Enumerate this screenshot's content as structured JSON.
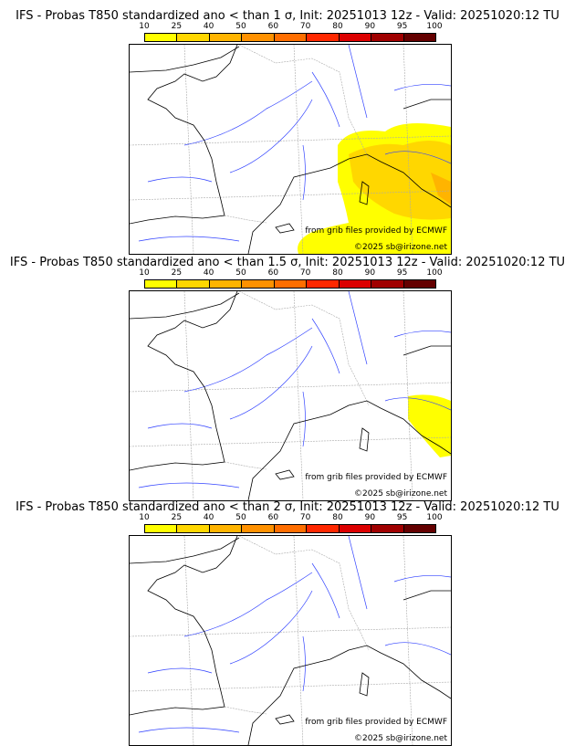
{
  "colorbar": {
    "ticks": [
      "10",
      "25",
      "40",
      "50",
      "60",
      "70",
      "80",
      "90",
      "95",
      "100"
    ],
    "colors": [
      "#ffff00",
      "#ffd700",
      "#ffb400",
      "#ff9100",
      "#ff6e00",
      "#ff2800",
      "#dc0000",
      "#a00000",
      "#640000"
    ]
  },
  "panels": [
    {
      "title": "IFS - Probas T850  standardized ano < than 1 σ, Init: 20251013 12z - Valid: 20251020:12 TU",
      "source": "from grib files provided by ECMWF",
      "copyright": "©2025 sb@irizone.net",
      "level": "high"
    },
    {
      "title": "IFS - Probas T850  standardized ano < than 1.5 σ, Init: 20251013 12z - Valid: 20251020:12 TU",
      "source": "from grib files provided by ECMWF",
      "copyright": "©2025 sb@irizone.net",
      "level": "low"
    },
    {
      "title": "IFS - Probas T850  standardized ano < than 2 σ, Init: 20251013 12z - Valid: 20251020:12 TU",
      "source": "from grib files provided by ECMWF",
      "copyright": "©2025 sb@irizone.net",
      "level": "none"
    }
  ]
}
